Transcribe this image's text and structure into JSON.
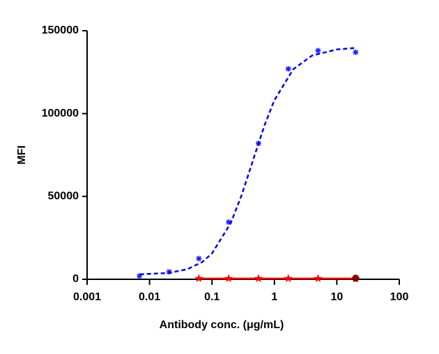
{
  "chart_data": {
    "type": "scatter",
    "xlabel": "Antibody conc. (μg/mL)",
    "ylabel": "MFI",
    "xscale": "log",
    "xlim": [
      0.001,
      100
    ],
    "xticks": [
      0.001,
      0.01,
      0.1,
      1,
      10,
      100
    ],
    "ylim": [
      0,
      150000
    ],
    "yticks": [
      0,
      50000,
      100000,
      150000
    ],
    "series": [
      {
        "color": "#1a1aff",
        "marker": "asterisk",
        "line": "none",
        "x": [
          0.0069,
          0.0206,
          0.0617,
          0.185,
          0.556,
          1.67,
          5,
          20
        ],
        "values": [
          2000,
          4500,
          12500,
          34500,
          82000,
          127000,
          138000,
          137000
        ]
      },
      {
        "color": "#0000ee",
        "marker": "none",
        "line": "dashed",
        "x": [
          0.007,
          0.02,
          0.04,
          0.07,
          0.1,
          0.2,
          0.3,
          0.5,
          0.7,
          1,
          2,
          4,
          10,
          20
        ],
        "values": [
          3000,
          3800,
          6050,
          10400,
          15600,
          33900,
          51000,
          76600,
          93300,
          108100,
          126700,
          135000,
          138700,
          139600
        ]
      },
      {
        "color": "#ff0000",
        "marker": "star",
        "line": "solid",
        "x": [
          0.0617,
          0.185,
          0.556,
          1.67,
          5,
          20
        ],
        "values": [
          500,
          500,
          500,
          500,
          500,
          500
        ]
      },
      {
        "color": "#800000",
        "marker": "hexagon",
        "line": "none",
        "x": [
          20
        ],
        "values": [
          600
        ]
      }
    ]
  }
}
